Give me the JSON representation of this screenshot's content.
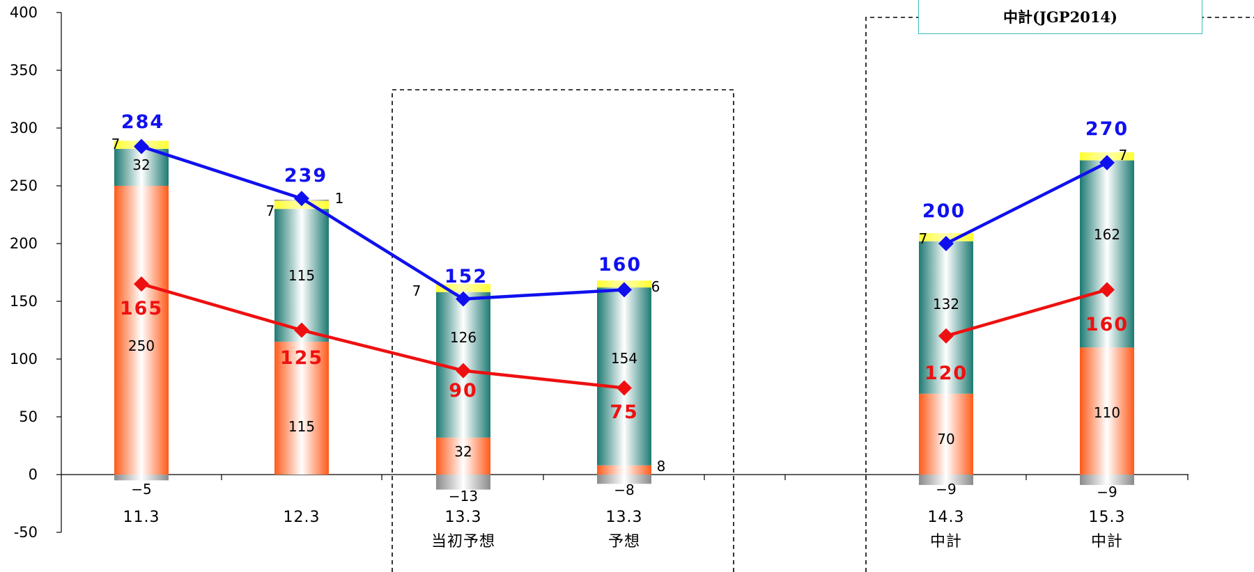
{
  "chart_data": {
    "type": "bar",
    "stacked": true,
    "categories": [
      {
        "line1": "11.3",
        "line2": ""
      },
      {
        "line1": "12.3",
        "line2": ""
      },
      {
        "line1": "13.3",
        "line2": "当初予想"
      },
      {
        "line1": "13.3",
        "line2": "予想"
      },
      {
        "line1": "14.3",
        "line2": "中計"
      },
      {
        "line1": "15.3",
        "line2": "中計"
      }
    ],
    "ylim": [
      -50,
      400
    ],
    "yticks": [
      -50,
      0,
      50,
      100,
      150,
      200,
      250,
      300,
      350,
      400
    ],
    "series": [
      {
        "key": "orange",
        "color": "#ff6a2a",
        "values": [
          250,
          115,
          32,
          8,
          70,
          110
        ],
        "labels": [
          "250",
          "115",
          "32",
          "8",
          "70",
          "110"
        ]
      },
      {
        "key": "teal",
        "color": "#2e8a82",
        "values": [
          32,
          115,
          126,
          154,
          132,
          162
        ],
        "labels": [
          "32",
          "115",
          "126",
          "154",
          "132",
          "162"
        ]
      },
      {
        "key": "yellow",
        "color": "#ffff40",
        "values": [
          7,
          7,
          7,
          6,
          7,
          7
        ],
        "labels": [
          "7",
          "7",
          "7",
          "6",
          "7",
          "7"
        ]
      },
      {
        "key": "gray",
        "color": "#b0b0b0",
        "values": [
          0,
          1,
          0,
          0,
          0,
          0
        ],
        "labels": [
          "",
          "1",
          "",
          "",
          "",
          ""
        ]
      },
      {
        "key": "negative",
        "color": "#9a9a9a",
        "values": [
          -5,
          0,
          -13,
          -8,
          -9,
          -9
        ],
        "labels": [
          "−5",
          "",
          "−13",
          "−8",
          "−9",
          "−9"
        ]
      }
    ],
    "lines": [
      {
        "key": "blue",
        "color": "#1010ee",
        "values": [
          284,
          239,
          152,
          160,
          200,
          270
        ],
        "labels": [
          "284",
          "239",
          "152",
          "160",
          "200",
          "270"
        ]
      },
      {
        "key": "red",
        "color": "#ee1010",
        "values": [
          165,
          125,
          90,
          75,
          120,
          160
        ],
        "labels": [
          "165",
          "125",
          "90",
          "75",
          "120",
          "160"
        ]
      }
    ],
    "plan_label": "中計(JGP2014)"
  }
}
